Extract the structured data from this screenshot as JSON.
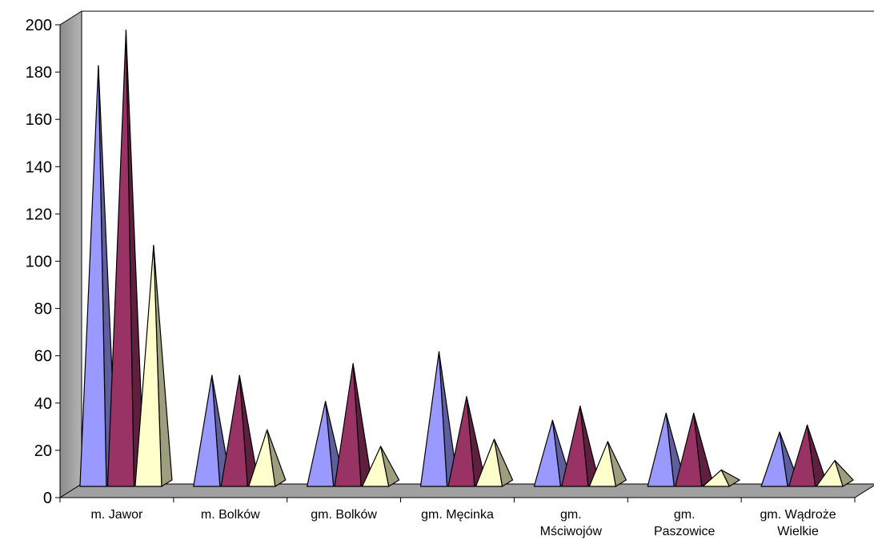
{
  "chart_data": {
    "type": "bar",
    "style": "3d-pyramid",
    "categories": [
      [
        "m. Jawor"
      ],
      [
        "m. Bolków"
      ],
      [
        "gm. Bolków"
      ],
      [
        "gm. Męcinka"
      ],
      [
        "gm.",
        "Mściwojów"
      ],
      [
        "gm.",
        "Paszowice"
      ],
      [
        "gm. Wądroże",
        "Wielkie"
      ]
    ],
    "series": [
      {
        "color": "#9999ff",
        "values": [
          180,
          49,
          38,
          59,
          30,
          33,
          25
        ]
      },
      {
        "color": "#993366",
        "values": [
          195,
          49,
          54,
          40,
          36,
          33,
          28
        ]
      },
      {
        "color": "#ffffcc",
        "values": [
          104,
          26,
          19,
          22,
          21,
          9,
          13
        ]
      }
    ],
    "y_ticks": [
      "0",
      "20",
      "40",
      "60",
      "80",
      "100",
      "120",
      "140",
      "160",
      "180",
      "200"
    ],
    "ylim": [
      0,
      200
    ],
    "legend": "none",
    "grid": false,
    "title": "",
    "xlabel": "",
    "ylabel": ""
  }
}
